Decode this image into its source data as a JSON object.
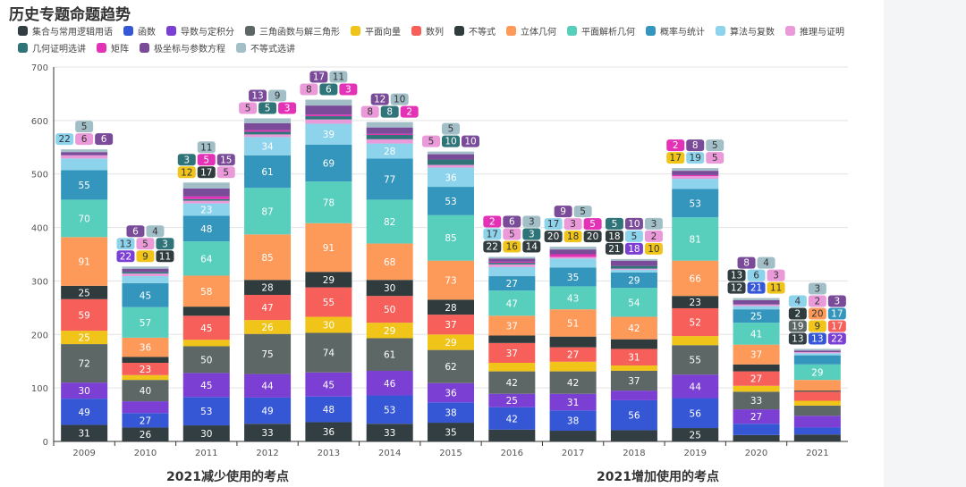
{
  "title": "历史专题命题趋势",
  "notes": [
    "2021减少使用的考点",
    "2021增加使用的考点"
  ],
  "chart_data": {
    "type": "bar",
    "stacked": true,
    "title": "历史专题命题趋势",
    "legend_position": "top",
    "grid": true,
    "ylim": [
      0,
      700
    ],
    "yticks": [
      0,
      100,
      200,
      300,
      400,
      500,
      600,
      700
    ],
    "categories": [
      "2009",
      "2010",
      "2011",
      "2012",
      "2013",
      "2014",
      "2015",
      "2016",
      "2017",
      "2018",
      "2019",
      "2020",
      "2021"
    ],
    "series": [
      {
        "name": "集合与常用逻辑用语",
        "color": "#323e42",
        "values": [
          31,
          26,
          30,
          33,
          36,
          33,
          35,
          22,
          20,
          21,
          25,
          12,
          13
        ]
      },
      {
        "name": "函数",
        "color": "#3557d6",
        "values": [
          49,
          27,
          53,
          49,
          48,
          53,
          38,
          42,
          38,
          56,
          56,
          21,
          13
        ]
      },
      {
        "name": "导数与定积分",
        "color": "#7b3fd4",
        "values": [
          30,
          22,
          45,
          44,
          45,
          46,
          36,
          25,
          31,
          18,
          44,
          27,
          22
        ]
      },
      {
        "name": "三角函数与解三角形",
        "color": "#5d6866",
        "values": [
          72,
          40,
          50,
          75,
          74,
          61,
          62,
          42,
          42,
          37,
          55,
          33,
          19
        ]
      },
      {
        "name": "平面向量",
        "color": "#f0c419",
        "values": [
          25,
          9,
          12,
          26,
          30,
          29,
          29,
          16,
          18,
          10,
          17,
          11,
          9
        ]
      },
      {
        "name": "数列",
        "color": "#f7605a",
        "values": [
          59,
          23,
          45,
          47,
          55,
          50,
          37,
          37,
          27,
          31,
          52,
          27,
          17
        ]
      },
      {
        "name": "不等式",
        "color": "#2f3b3d",
        "values": [
          25,
          11,
          17,
          28,
          29,
          30,
          28,
          14,
          20,
          18,
          23,
          13,
          2
        ]
      },
      {
        "name": "立体几何",
        "color": "#fd9a5a",
        "values": [
          91,
          36,
          58,
          85,
          91,
          68,
          73,
          37,
          51,
          42,
          66,
          37,
          20
        ]
      },
      {
        "name": "平面解析几何",
        "color": "#58cfbd",
        "values": [
          70,
          57,
          64,
          87,
          78,
          82,
          85,
          47,
          43,
          54,
          81,
          41,
          29
        ]
      },
      {
        "name": "概率与统计",
        "color": "#3596bd",
        "values": [
          55,
          45,
          48,
          61,
          69,
          77,
          53,
          27,
          35,
          29,
          53,
          25,
          17
        ]
      },
      {
        "name": "算法与复数",
        "color": "#8dd3ec",
        "values": [
          22,
          13,
          23,
          34,
          39,
          28,
          36,
          17,
          17,
          5,
          19,
          6,
          4
        ]
      },
      {
        "name": "推理与证明",
        "color": "#ea9ad9",
        "values": [
          6,
          5,
          5,
          5,
          8,
          8,
          5,
          5,
          3,
          2,
          5,
          3,
          2
        ]
      },
      {
        "name": "几何证明选讲",
        "color": "#2e7479",
        "values": [
          0,
          3,
          3,
          5,
          6,
          8,
          10,
          3,
          0,
          5,
          0,
          0,
          0
        ]
      },
      {
        "name": "矩阵",
        "color": "#e332b5",
        "values": [
          0,
          0,
          5,
          3,
          3,
          2,
          0,
          2,
          5,
          0,
          2,
          0,
          0
        ]
      },
      {
        "name": "极坐标与参数方程",
        "color": "#7a4b98",
        "values": [
          6,
          6,
          15,
          13,
          17,
          12,
          10,
          6,
          9,
          10,
          8,
          8,
          3
        ]
      },
      {
        "name": "不等式选讲",
        "color": "#a2bfc8",
        "values": [
          5,
          4,
          11,
          9,
          11,
          10,
          5,
          3,
          5,
          3,
          5,
          4,
          3
        ]
      }
    ]
  }
}
